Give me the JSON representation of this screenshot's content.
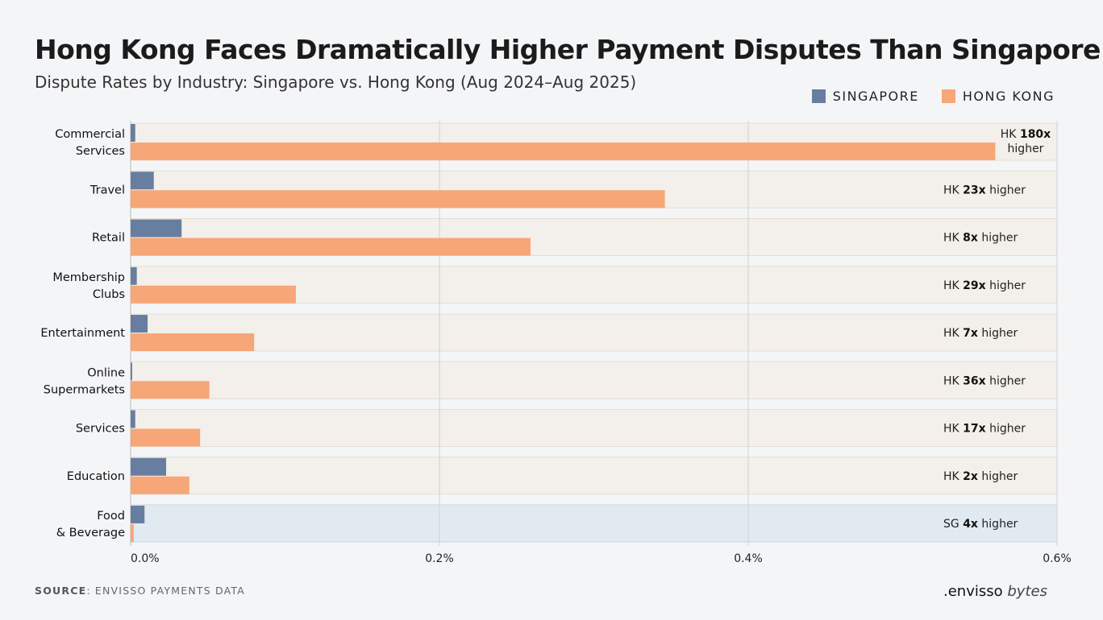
{
  "title": "Hong Kong Faces Dramatically Higher Payment Disputes Than Singapore",
  "subtitle": "Dispute Rates by Industry: Singapore vs. Hong Kong (Aug 2024–Aug 2025)",
  "source": {
    "label": "SOURCE",
    "text": ": ENVISSO PAYMENTS DATA"
  },
  "logo": {
    "brand": ".envisso",
    "suffix": "bytes"
  },
  "colors": {
    "singapore": "#687ea0",
    "hong_kong": "#f7a677",
    "band_hk": "#f3efea",
    "band_sg": "#e1eaf1"
  },
  "chart_data": {
    "type": "bar",
    "orientation": "horizontal",
    "title": "Hong Kong Faces Dramatically Higher Payment Disputes Than Singapore",
    "subtitle": "Dispute Rates by Industry: Singapore vs. Hong Kong (Aug 2024–Aug 2025)",
    "legend_placement": "top-right",
    "grid": true,
    "xlim": [
      0,
      0.6
    ],
    "x_ticks": [
      "0.0%",
      "0.2%",
      "0.4%",
      "0.6%"
    ],
    "x_tick_values": [
      0,
      0.2,
      0.4,
      0.6
    ],
    "categories": [
      [
        "Commercial",
        "Services"
      ],
      [
        "Travel"
      ],
      [
        "Retail"
      ],
      [
        "Membership",
        "Clubs"
      ],
      [
        "Entertainment"
      ],
      [
        "Online",
        "Supermarkets"
      ],
      [
        "Services"
      ],
      [
        "Education"
      ],
      [
        "Food",
        "& Beverage"
      ]
    ],
    "series": [
      {
        "name": "SINGAPORE",
        "values": [
          0.003,
          0.015,
          0.033,
          0.004,
          0.011,
          0.001,
          0.003,
          0.023,
          0.009
        ]
      },
      {
        "name": "HONG KONG",
        "values": [
          0.56,
          0.346,
          0.259,
          0.107,
          0.08,
          0.051,
          0.045,
          0.038,
          0.002
        ]
      }
    ],
    "annotations": [
      {
        "prefix": "HK ",
        "multiple": "180x",
        "suffix": "higher",
        "wrap": true,
        "leader": "hk"
      },
      {
        "prefix": "HK ",
        "multiple": "23x",
        "suffix": " higher",
        "leader": "hk"
      },
      {
        "prefix": "HK ",
        "multiple": "8x",
        "suffix": " higher",
        "leader": "hk"
      },
      {
        "prefix": "HK ",
        "multiple": "29x",
        "suffix": " higher",
        "leader": "hk"
      },
      {
        "prefix": "HK ",
        "multiple": "7x",
        "suffix": " higher",
        "leader": "hk"
      },
      {
        "prefix": "HK ",
        "multiple": "36x",
        "suffix": " higher",
        "leader": "hk"
      },
      {
        "prefix": "HK ",
        "multiple": "17x",
        "suffix": " higher",
        "leader": "hk"
      },
      {
        "prefix": "HK ",
        "multiple": "2x",
        "suffix": " higher",
        "leader": "hk"
      },
      {
        "prefix": "SG ",
        "multiple": "4x",
        "suffix": " higher",
        "leader": "sg"
      }
    ]
  }
}
